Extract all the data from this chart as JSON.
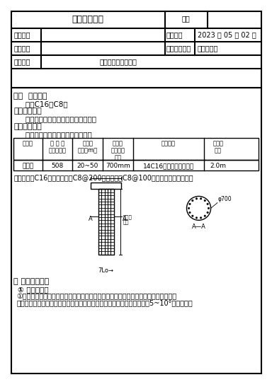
{
  "title": "技术交底记录",
  "header_rows": [
    [
      "技术交底记录",
      "编号",
      ""
    ],
    [
      "工程名称",
      "",
      "交底日期",
      "2023 年 05 月 02 日"
    ],
    [
      "施工单位",
      "",
      "分项工程名称",
      "钢筋笼施工"
    ],
    [
      "交底提要",
      "钢筋笼施工技术交底"
    ]
  ],
  "section1_title": "一、  材料准备",
  "section1_content": "    钢筋C16、C8。",
  "section2_title": "二、施工机具",
  "section2_content": "    切割机、调直机、电焊机、钢尺等。",
  "section3_title": "三、设计参数",
  "section3_intro": "    本次钢筋笼制作设计参数如下表：",
  "table_headers": [
    "桩类型",
    "钢 筋 笼\n数量（个）",
    "钢筋笼\n长度（m）",
    "钢筋笼\n直径（外\n径）",
    "配筋数量",
    "加强筋\n间距"
  ],
  "table_row": [
    "灌注桩",
    "508",
    "20~50",
    "700mm",
    "14C16（接头采用焊接）",
    "2.0m"
  ],
  "table_note": "加劲筋采用C16钢筋。箍筋为C8@200；加密区为C8@100，具体详见桩配筋图。",
  "section4_title": "四 施工技术要求",
  "section4_sub": "① 钢筋笼加工",
  "section4_content": "①进入现场的钢材需提前验复试，钢筋笼采用现场加工制作，加工尺寸严格按设计图纸\n及规范要求进行控制，钢筋笼主筋采用单面焊接。钢筋笼下部收口角度为5~10°。主筋与螺",
  "bg_color": "#ffffff",
  "border_color": "#000000",
  "text_color": "#000000"
}
